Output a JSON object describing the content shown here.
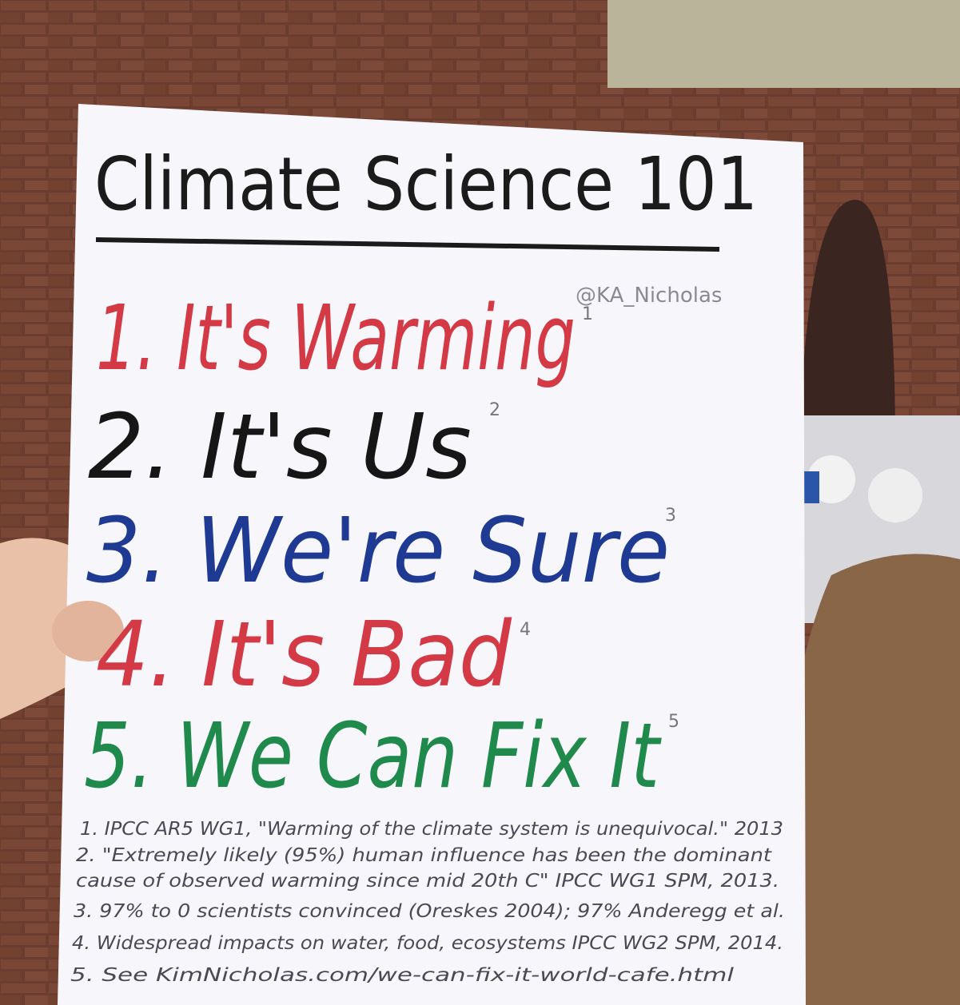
{
  "sign": {
    "title": "Climate Science 101",
    "credit": "@KA_Nicholas",
    "items": [
      {
        "text": "1. It's Warming",
        "note": "1"
      },
      {
        "text": "2. It's Us",
        "note": "2"
      },
      {
        "text": "3. We're Sure",
        "note": "3"
      },
      {
        "text": "4. It's Bad",
        "note": "4"
      },
      {
        "text": "5. We Can Fix It",
        "note": "5"
      }
    ],
    "footnotes": [
      "1. IPCC AR5 WG1, \"Warming of the climate system is unequivocal.\" 2013",
      "2. \"Extremely likely (95%) human influence has been the dominant",
      "cause of observed warming since mid 20th C\" IPCC WG1 SPM, 2013.",
      "3. 97% to 0 scientists convinced (Oreskes 2004); 97% Anderegg et al.",
      "4. Widespread impacts on water, food, ecosystems IPCC WG2 SPM, 2014.",
      "5. See KimNicholas.com/we-can-fix-it-world-cafe.html"
    ]
  }
}
